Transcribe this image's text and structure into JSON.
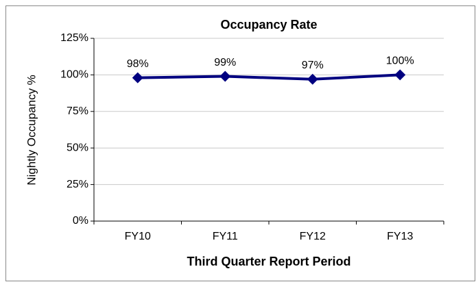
{
  "chart_data": {
    "type": "line",
    "title": "Occupancy Rate",
    "x_label": "Third Quarter Report Period",
    "y_label": "Nightly Occupancy %",
    "categories": [
      "FY10",
      "FY11",
      "FY12",
      "FY13"
    ],
    "series": [
      {
        "name": "Occupancy Rate",
        "color": "#000080",
        "values": [
          98,
          99,
          97,
          100
        ],
        "value_labels": [
          "98%",
          "99%",
          "97%",
          "100%"
        ]
      }
    ],
    "ylim": [
      0,
      125
    ],
    "yticks": [
      {
        "value": 0,
        "label": "0%"
      },
      {
        "value": 25,
        "label": "25%"
      },
      {
        "value": 50,
        "label": "50%"
      },
      {
        "value": 75,
        "label": "75%"
      },
      {
        "value": 100,
        "label": "100%"
      },
      {
        "value": 125,
        "label": "125%"
      }
    ],
    "grid": true
  }
}
